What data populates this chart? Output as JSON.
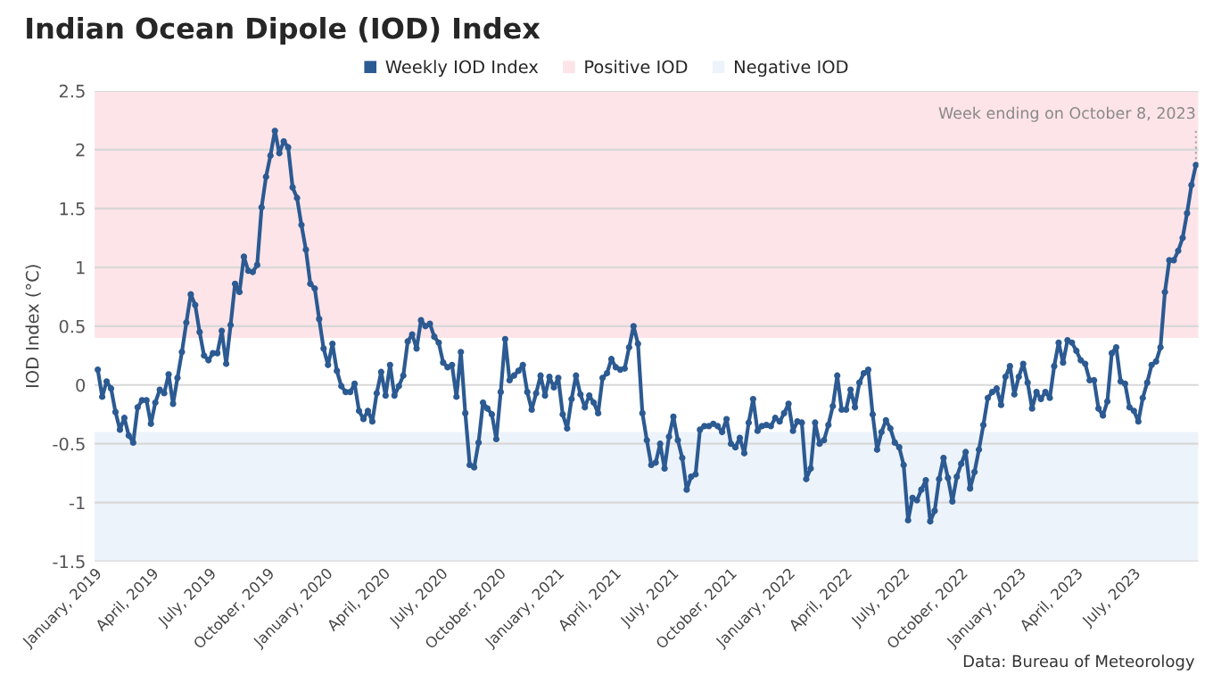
{
  "chart_data": {
    "type": "line",
    "title": "Indian Ocean Dipole (IOD) Index",
    "ylabel": "IOD Index (°C)",
    "x": [
      "2019-01-06",
      "2019-01-13",
      "2019-01-20",
      "2019-01-27",
      "2019-02-03",
      "2019-02-10",
      "2019-02-17",
      "2019-02-24",
      "2019-03-03",
      "2019-03-10",
      "2019-03-17",
      "2019-03-24",
      "2019-03-31",
      "2019-04-07",
      "2019-04-14",
      "2019-04-21",
      "2019-04-28",
      "2019-05-05",
      "2019-05-12",
      "2019-05-19",
      "2019-05-26",
      "2019-06-02",
      "2019-06-09",
      "2019-06-16",
      "2019-06-23",
      "2019-06-30",
      "2019-07-07",
      "2019-07-14",
      "2019-07-21",
      "2019-07-28",
      "2019-08-04",
      "2019-08-11",
      "2019-08-18",
      "2019-08-25",
      "2019-09-01",
      "2019-09-08",
      "2019-09-15",
      "2019-09-22",
      "2019-09-29",
      "2019-10-06",
      "2019-10-13",
      "2019-10-20",
      "2019-10-27",
      "2019-11-03",
      "2019-11-10",
      "2019-11-17",
      "2019-11-24",
      "2019-12-01",
      "2019-12-08",
      "2019-12-15",
      "2019-12-22",
      "2019-12-29",
      "2020-01-05",
      "2020-01-12",
      "2020-01-19",
      "2020-01-26",
      "2020-02-02",
      "2020-02-09",
      "2020-02-16",
      "2020-02-23",
      "2020-03-01",
      "2020-03-08",
      "2020-03-15",
      "2020-03-22",
      "2020-03-29",
      "2020-04-05",
      "2020-04-12",
      "2020-04-19",
      "2020-04-26",
      "2020-05-03",
      "2020-05-10",
      "2020-05-17",
      "2020-05-24",
      "2020-05-31",
      "2020-06-07",
      "2020-06-14",
      "2020-06-21",
      "2020-06-28",
      "2020-07-05",
      "2020-07-12",
      "2020-07-19",
      "2020-07-26",
      "2020-08-02",
      "2020-08-09",
      "2020-08-16",
      "2020-08-23",
      "2020-08-30",
      "2020-09-06",
      "2020-09-13",
      "2020-09-20",
      "2020-09-27",
      "2020-10-04",
      "2020-10-11",
      "2020-10-18",
      "2020-10-25",
      "2020-11-01",
      "2020-11-08",
      "2020-11-15",
      "2020-11-22",
      "2020-11-29",
      "2020-12-06",
      "2020-12-13",
      "2020-12-20",
      "2020-12-27",
      "2021-01-03",
      "2021-01-10",
      "2021-01-17",
      "2021-01-24",
      "2021-01-31",
      "2021-02-07",
      "2021-02-14",
      "2021-02-21",
      "2021-02-28",
      "2021-03-07",
      "2021-03-14",
      "2021-03-21",
      "2021-03-28",
      "2021-04-04",
      "2021-04-11",
      "2021-04-18",
      "2021-04-25",
      "2021-05-02",
      "2021-05-09",
      "2021-05-16",
      "2021-05-23",
      "2021-05-30",
      "2021-06-06",
      "2021-06-13",
      "2021-06-20",
      "2021-06-27",
      "2021-07-04",
      "2021-07-11",
      "2021-07-18",
      "2021-07-25",
      "2021-08-01",
      "2021-08-08",
      "2021-08-15",
      "2021-08-22",
      "2021-08-29",
      "2021-09-05",
      "2021-09-12",
      "2021-09-19",
      "2021-09-26",
      "2021-10-03",
      "2021-10-10",
      "2021-10-17",
      "2021-10-24",
      "2021-10-31",
      "2021-11-07",
      "2021-11-14",
      "2021-11-21",
      "2021-11-28",
      "2021-12-05",
      "2021-12-12",
      "2021-12-19",
      "2021-12-26",
      "2022-01-02",
      "2022-01-09",
      "2022-01-16",
      "2022-01-23",
      "2022-01-30",
      "2022-02-06",
      "2022-02-13",
      "2022-02-20",
      "2022-02-27",
      "2022-03-06",
      "2022-03-13",
      "2022-03-20",
      "2022-03-27",
      "2022-04-03",
      "2022-04-10",
      "2022-04-17",
      "2022-04-24",
      "2022-05-01",
      "2022-05-08",
      "2022-05-15",
      "2022-05-22",
      "2022-05-29",
      "2022-06-05",
      "2022-06-12",
      "2022-06-19",
      "2022-06-26",
      "2022-07-03",
      "2022-07-10",
      "2022-07-17",
      "2022-07-24",
      "2022-07-31",
      "2022-08-07",
      "2022-08-14",
      "2022-08-21",
      "2022-08-28",
      "2022-09-04",
      "2022-09-11",
      "2022-09-18",
      "2022-09-25",
      "2022-10-02",
      "2022-10-09",
      "2022-10-16",
      "2022-10-23",
      "2022-10-30",
      "2022-11-06",
      "2022-11-13",
      "2022-11-20",
      "2022-11-27",
      "2022-12-04",
      "2022-12-11",
      "2022-12-18",
      "2022-12-25",
      "2023-01-01",
      "2023-01-08",
      "2023-01-15",
      "2023-01-22",
      "2023-01-29",
      "2023-02-05",
      "2023-02-12",
      "2023-02-19",
      "2023-02-26",
      "2023-03-05",
      "2023-03-12",
      "2023-03-19",
      "2023-03-26",
      "2023-04-02",
      "2023-04-09",
      "2023-04-16",
      "2023-04-23",
      "2023-04-30",
      "2023-05-07",
      "2023-05-14",
      "2023-05-21",
      "2023-05-28",
      "2023-06-04",
      "2023-06-11",
      "2023-06-18",
      "2023-06-25",
      "2023-07-02",
      "2023-07-09",
      "2023-07-16",
      "2023-07-23",
      "2023-07-30",
      "2023-08-06",
      "2023-08-13",
      "2023-08-20",
      "2023-08-27",
      "2023-09-03",
      "2023-09-10",
      "2023-09-17",
      "2023-09-24",
      "2023-10-01",
      "2023-10-08"
    ],
    "series": [
      {
        "name": "Weekly IOD Index",
        "color": "#2c5a92",
        "values": [
          0.13,
          -0.1,
          0.03,
          -0.03,
          -0.23,
          -0.38,
          -0.28,
          -0.43,
          -0.49,
          -0.19,
          -0.13,
          -0.13,
          -0.33,
          -0.15,
          -0.04,
          -0.07,
          0.09,
          -0.16,
          0.06,
          0.28,
          0.53,
          0.77,
          0.68,
          0.45,
          0.25,
          0.21,
          0.27,
          0.27,
          0.46,
          0.18,
          0.51,
          0.86,
          0.79,
          1.09,
          0.97,
          0.96,
          1.02,
          1.51,
          1.77,
          1.95,
          2.16,
          1.97,
          2.07,
          2.02,
          1.68,
          1.59,
          1.36,
          1.15,
          0.86,
          0.82,
          0.56,
          0.31,
          0.17,
          0.35,
          0.12,
          -0.01,
          -0.06,
          -0.06,
          0.01,
          -0.22,
          -0.29,
          -0.22,
          -0.31,
          -0.07,
          0.11,
          -0.09,
          0.17,
          -0.09,
          -0.01,
          0.08,
          0.37,
          0.43,
          0.31,
          0.55,
          0.5,
          0.52,
          0.41,
          0.36,
          0.19,
          0.15,
          0.17,
          -0.1,
          0.28,
          -0.24,
          -0.68,
          -0.7,
          -0.49,
          -0.15,
          -0.2,
          -0.25,
          -0.46,
          -0.06,
          0.39,
          0.04,
          0.08,
          0.12,
          0.17,
          -0.06,
          -0.21,
          -0.07,
          0.08,
          -0.09,
          0.07,
          -0.02,
          0.06,
          -0.25,
          -0.37,
          -0.12,
          0.08,
          -0.08,
          -0.19,
          -0.09,
          -0.15,
          -0.24,
          0.06,
          0.1,
          0.22,
          0.15,
          0.13,
          0.14,
          0.32,
          0.5,
          0.35,
          -0.24,
          -0.47,
          -0.68,
          -0.66,
          -0.5,
          -0.71,
          -0.44,
          -0.27,
          -0.47,
          -0.62,
          -0.89,
          -0.78,
          -0.76,
          -0.38,
          -0.35,
          -0.35,
          -0.33,
          -0.35,
          -0.4,
          -0.29,
          -0.5,
          -0.53,
          -0.45,
          -0.58,
          -0.32,
          -0.12,
          -0.39,
          -0.35,
          -0.34,
          -0.35,
          -0.28,
          -0.31,
          -0.24,
          -0.16,
          -0.39,
          -0.31,
          -0.32,
          -0.8,
          -0.71,
          -0.32,
          -0.5,
          -0.47,
          -0.34,
          -0.18,
          0.08,
          -0.21,
          -0.21,
          -0.04,
          -0.19,
          0.02,
          0.1,
          0.13,
          -0.25,
          -0.55,
          -0.4,
          -0.3,
          -0.37,
          -0.49,
          -0.53,
          -0.68,
          -1.15,
          -0.96,
          -0.98,
          -0.89,
          -0.81,
          -1.16,
          -1.07,
          -0.8,
          -0.62,
          -0.79,
          -0.99,
          -0.78,
          -0.67,
          -0.57,
          -0.88,
          -0.74,
          -0.55,
          -0.34,
          -0.11,
          -0.06,
          -0.03,
          -0.17,
          0.07,
          0.16,
          -0.08,
          0.07,
          0.18,
          0.02,
          -0.2,
          -0.06,
          -0.12,
          -0.06,
          -0.11,
          0.16,
          0.36,
          0.19,
          0.38,
          0.36,
          0.29,
          0.21,
          0.18,
          0.04,
          0.04,
          -0.2,
          -0.26,
          -0.14,
          0.27,
          0.32,
          0.03,
          0.01,
          -0.19,
          -0.22,
          -0.31,
          -0.11,
          0.02,
          0.17,
          0.2,
          0.32,
          0.79,
          1.06,
          1.06,
          1.14,
          1.25,
          1.46,
          1.7,
          1.87
        ]
      }
    ],
    "bands": [
      {
        "axis": "y",
        "from": 0.4,
        "to": 2.5,
        "label": "Positive IOD",
        "color": "#fde4e8"
      },
      {
        "axis": "y",
        "from": -1.5,
        "to": -0.4,
        "label": "Negative IOD",
        "color": "#edf3fb"
      }
    ],
    "ylim": [
      -1.5,
      2.5
    ],
    "yticks": [
      -1.5,
      -1,
      -0.5,
      0,
      0.5,
      1,
      1.5,
      2,
      2.5
    ],
    "xlim": [
      "2019-01-01",
      "2023-10-12"
    ],
    "xticks": [
      {
        "value": "2019-01-01",
        "label": "January, 2019"
      },
      {
        "value": "2019-04-01",
        "label": "April, 2019"
      },
      {
        "value": "2019-07-01",
        "label": "July, 2019"
      },
      {
        "value": "2019-10-01",
        "label": "October, 2019"
      },
      {
        "value": "2020-01-01",
        "label": "January, 2020"
      },
      {
        "value": "2020-04-01",
        "label": "April, 2020"
      },
      {
        "value": "2020-07-01",
        "label": "July, 2020"
      },
      {
        "value": "2020-10-01",
        "label": "October, 2020"
      },
      {
        "value": "2021-01-01",
        "label": "January, 2021"
      },
      {
        "value": "2021-04-01",
        "label": "April, 2021"
      },
      {
        "value": "2021-07-01",
        "label": "July, 2021"
      },
      {
        "value": "2021-10-01",
        "label": "October, 2021"
      },
      {
        "value": "2022-01-01",
        "label": "January, 2022"
      },
      {
        "value": "2022-04-01",
        "label": "April, 2022"
      },
      {
        "value": "2022-07-01",
        "label": "July, 2022"
      },
      {
        "value": "2022-10-01",
        "label": "October, 2022"
      },
      {
        "value": "2023-01-01",
        "label": "January, 2023"
      },
      {
        "value": "2023-04-01",
        "label": "April, 2023"
      },
      {
        "value": "2023-07-01",
        "label": "July, 2023"
      }
    ],
    "annotations": [
      {
        "text": "Week ending on October 8, 2023",
        "x": "2023-10-08",
        "y": 1.87
      },
      "Data: Bureau of Meteorology"
    ],
    "grid": "y",
    "legend": "top",
    "marker": "circle",
    "line_style": "solid"
  }
}
